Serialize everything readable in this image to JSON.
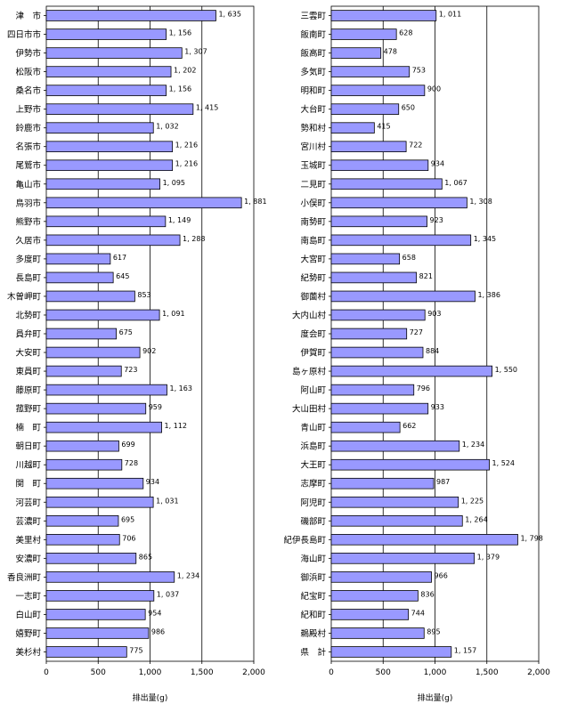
{
  "colors": {
    "bar_fill": "#9999ff",
    "bar_stroke": "#000000",
    "grid": "#000000"
  },
  "chart_data": [
    {
      "type": "bar",
      "orientation": "horizontal",
      "xlabel": "排出量(g)",
      "xlim": [
        0,
        2000
      ],
      "xticks": [
        "0",
        "500",
        "1,000",
        "1,500",
        "2,000"
      ],
      "grid": true,
      "categories": [
        "津　市",
        "四日市市",
        "伊勢市",
        "松阪市",
        "桑名市",
        "上野市",
        "鈴鹿市",
        "名張市",
        "尾鷲市",
        "亀山市",
        "鳥羽市",
        "熊野市",
        "久居市",
        "多度町",
        "長島町",
        "木曽岬町",
        "北勢町",
        "員弁町",
        "大安町",
        "東員町",
        "藤原町",
        "菰野町",
        "楠　町",
        "朝日町",
        "川越町",
        "関　町",
        "河芸町",
        "芸濃町",
        "美里村",
        "安濃町",
        "香良洲町",
        "一志町",
        "白山町",
        "嬉野町",
        "美杉村"
      ],
      "values": [
        1635,
        1156,
        1307,
        1202,
        1156,
        1415,
        1032,
        1216,
        1216,
        1095,
        1881,
        1149,
        1288,
        617,
        645,
        853,
        1091,
        675,
        902,
        723,
        1163,
        959,
        1112,
        699,
        728,
        934,
        1031,
        695,
        706,
        865,
        1234,
        1037,
        954,
        986,
        775
      ],
      "value_labels": [
        "1, 635",
        "1, 156",
        "1, 307",
        "1, 202",
        "1, 156",
        "1, 415",
        "1, 032",
        "1, 216",
        "1, 216",
        "1, 095",
        "1, 881",
        "1, 149",
        "1, 288",
        "617",
        "645",
        "853",
        "1, 091",
        "675",
        "902",
        "723",
        "1, 163",
        "959",
        "1, 112",
        "699",
        "728",
        "934",
        "1, 031",
        "695",
        "706",
        "865",
        "1, 234",
        "1, 037",
        "954",
        "986",
        "775"
      ]
    },
    {
      "type": "bar",
      "orientation": "horizontal",
      "xlabel": "排出量(g)",
      "xlim": [
        0,
        2000
      ],
      "xticks": [
        "0",
        "500",
        "1,000",
        "1,500",
        "2,000"
      ],
      "grid": true,
      "categories": [
        "三雲町",
        "飯南町",
        "飯高町",
        "多気町",
        "明和町",
        "大台町",
        "勢和村",
        "宮川村",
        "玉城町",
        "二見町",
        "小俣町",
        "南勢町",
        "南島町",
        "大宮町",
        "紀勢町",
        "御薗村",
        "大内山村",
        "度会町",
        "伊賀町",
        "島ヶ原村",
        "阿山町",
        "大山田村",
        "青山町",
        "浜島町",
        "大王町",
        "志摩町",
        "阿児町",
        "磯部町",
        "紀伊長島町",
        "海山町",
        "御浜町",
        "紀宝町",
        "紀和町",
        "鵜殿村",
        "県　計"
      ],
      "values": [
        1011,
        628,
        478,
        753,
        900,
        650,
        415,
        722,
        934,
        1067,
        1308,
        923,
        1345,
        658,
        821,
        1386,
        903,
        727,
        884,
        1550,
        796,
        933,
        662,
        1234,
        1524,
        987,
        1225,
        1264,
        1798,
        1379,
        966,
        836,
        744,
        895,
        1157
      ],
      "value_labels": [
        "1, 011",
        "628",
        "478",
        "753",
        "900",
        "650",
        "415",
        "722",
        "934",
        "1, 067",
        "1, 308",
        "923",
        "1, 345",
        "658",
        "821",
        "1, 386",
        "903",
        "727",
        "884",
        "1, 550",
        "796",
        "933",
        "662",
        "1, 234",
        "1, 524",
        "987",
        "1, 225",
        "1, 264",
        "1, 798",
        "1, 379",
        "966",
        "836",
        "744",
        "895",
        "1, 157"
      ]
    }
  ]
}
